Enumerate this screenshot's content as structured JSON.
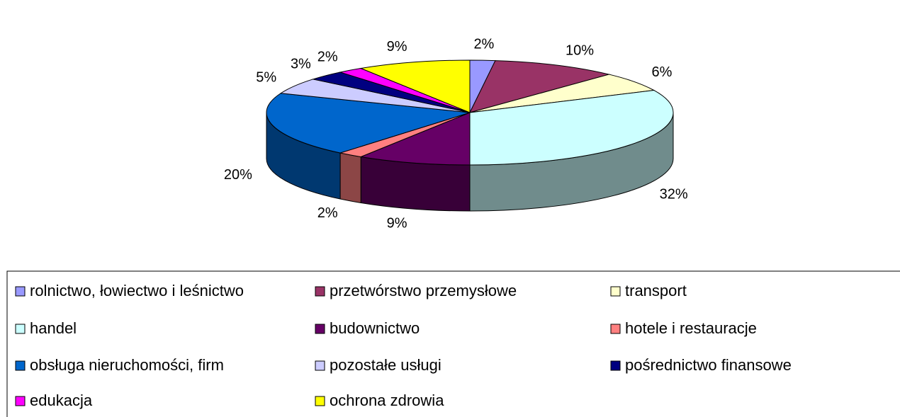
{
  "chart_data": {
    "type": "pie",
    "categories": [
      "rolnictwo, łowiectwo i leśnictwo",
      "przetwórstwo przemysłowe",
      "transport",
      "handel",
      "budownictwo",
      "hotele i restauracje",
      "obsługa nieruchomości, firm",
      "pozostałe usługi",
      "pośrednictwo finansowe",
      "edukacja",
      "ochrona zdrowia"
    ],
    "values": [
      2,
      10,
      6,
      32,
      9,
      2,
      20,
      5,
      3,
      2,
      9
    ],
    "value_labels": [
      "2%",
      "10%",
      "6%",
      "32%",
      "9%",
      "2%",
      "20%",
      "5%",
      "3%",
      "2%",
      "9%"
    ],
    "colors": [
      "#9999ff",
      "#993366",
      "#ffffcc",
      "#ccffff",
      "#660066",
      "#ff8080",
      "#0066cc",
      "#ccccff",
      "#000080",
      "#ff00ff",
      "#ffff00"
    ],
    "legend": "bottom",
    "three_d": true
  }
}
